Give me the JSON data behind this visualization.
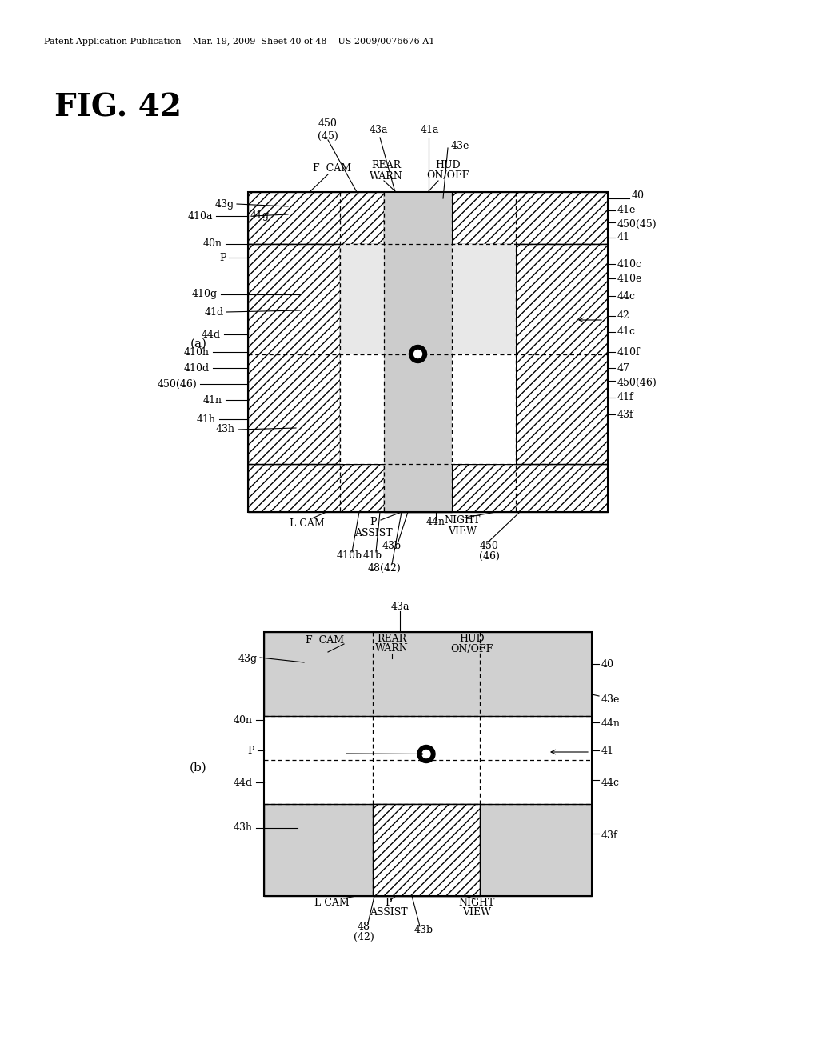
{
  "bg_color": "#ffffff",
  "header_text": "Patent Application Publication    Mar. 19, 2009  Sheet 40 of 48    US 2009/0076676 A1",
  "title": "FIG. 42",
  "fig_label_a": "(a)",
  "fig_label_b": "(b)"
}
